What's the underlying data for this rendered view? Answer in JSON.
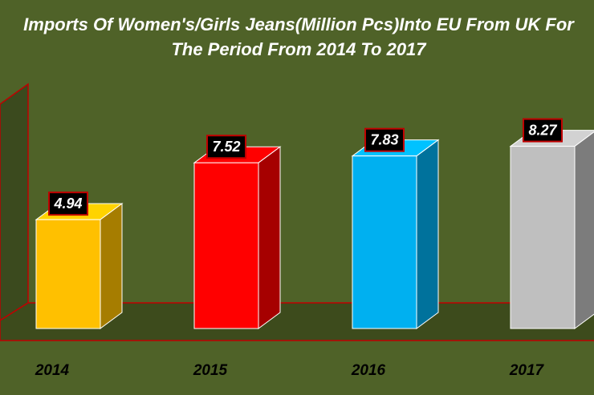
{
  "chart_data": {
    "type": "bar3d",
    "title": [
      "Imports Of Women's/Girls Jeans(Million Pcs)Into EU From UK For",
      "The Period From 2014 To 2017"
    ],
    "categories": [
      "2014",
      "2015",
      "2016",
      "2017"
    ],
    "values": [
      4.94,
      7.52,
      7.83,
      8.27
    ],
    "colors": [
      "#ffc000",
      "#ff0000",
      "#00b0f0",
      "#bfbfbf"
    ]
  }
}
